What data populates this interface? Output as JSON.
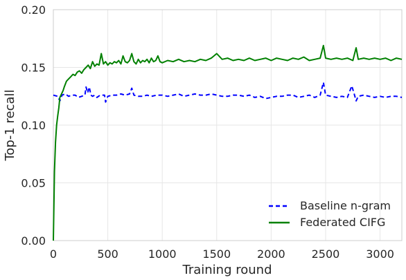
{
  "chart_data": {
    "type": "line",
    "xlabel": "Training round",
    "ylabel": "Top-1 recall",
    "xlim": [
      0,
      3200
    ],
    "ylim": [
      0,
      0.2
    ],
    "x_ticks": [
      "0",
      "500",
      "1000",
      "1500",
      "2000",
      "2500",
      "3000"
    ],
    "y_ticks": [
      "0.00",
      "0.05",
      "0.10",
      "0.15",
      "0.20"
    ],
    "grid": true,
    "legend_position": "bottom-right",
    "series": [
      {
        "name": "Baseline n-gram",
        "color": "#0000ff",
        "style": "dashed",
        "points": [
          [
            0,
            0.126
          ],
          [
            40,
            0.125
          ],
          [
            60,
            0.121
          ],
          [
            80,
            0.126
          ],
          [
            110,
            0.127
          ],
          [
            140,
            0.125
          ],
          [
            170,
            0.126
          ],
          [
            200,
            0.126
          ],
          [
            230,
            0.124
          ],
          [
            260,
            0.125
          ],
          [
            290,
            0.126
          ],
          [
            300,
            0.133
          ],
          [
            315,
            0.128
          ],
          [
            330,
            0.133
          ],
          [
            345,
            0.126
          ],
          [
            360,
            0.125
          ],
          [
            380,
            0.126
          ],
          [
            400,
            0.124
          ],
          [
            430,
            0.126
          ],
          [
            470,
            0.126
          ],
          [
            480,
            0.12
          ],
          [
            500,
            0.125
          ],
          [
            540,
            0.126
          ],
          [
            580,
            0.126
          ],
          [
            620,
            0.127
          ],
          [
            660,
            0.126
          ],
          [
            700,
            0.127
          ],
          [
            720,
            0.132
          ],
          [
            740,
            0.126
          ],
          [
            780,
            0.125
          ],
          [
            820,
            0.125
          ],
          [
            860,
            0.126
          ],
          [
            900,
            0.125
          ],
          [
            950,
            0.126
          ],
          [
            1000,
            0.126
          ],
          [
            1050,
            0.125
          ],
          [
            1100,
            0.126
          ],
          [
            1150,
            0.127
          ],
          [
            1200,
            0.125
          ],
          [
            1250,
            0.126
          ],
          [
            1300,
            0.127
          ],
          [
            1350,
            0.126
          ],
          [
            1400,
            0.126
          ],
          [
            1450,
            0.127
          ],
          [
            1500,
            0.126
          ],
          [
            1550,
            0.125
          ],
          [
            1600,
            0.125
          ],
          [
            1650,
            0.126
          ],
          [
            1700,
            0.126
          ],
          [
            1750,
            0.125
          ],
          [
            1800,
            0.126
          ],
          [
            1850,
            0.124
          ],
          [
            1900,
            0.125
          ],
          [
            1950,
            0.123
          ],
          [
            2000,
            0.124
          ],
          [
            2050,
            0.125
          ],
          [
            2100,
            0.125
          ],
          [
            2150,
            0.126
          ],
          [
            2200,
            0.126
          ],
          [
            2250,
            0.124
          ],
          [
            2300,
            0.125
          ],
          [
            2350,
            0.126
          ],
          [
            2400,
            0.124
          ],
          [
            2450,
            0.126
          ],
          [
            2480,
            0.137
          ],
          [
            2500,
            0.126
          ],
          [
            2550,
            0.125
          ],
          [
            2600,
            0.124
          ],
          [
            2650,
            0.125
          ],
          [
            2700,
            0.124
          ],
          [
            2740,
            0.134
          ],
          [
            2760,
            0.128
          ],
          [
            2780,
            0.121
          ],
          [
            2800,
            0.125
          ],
          [
            2850,
            0.126
          ],
          [
            2900,
            0.125
          ],
          [
            2950,
            0.124
          ],
          [
            3000,
            0.125
          ],
          [
            3050,
            0.124
          ],
          [
            3100,
            0.125
          ],
          [
            3150,
            0.125
          ],
          [
            3200,
            0.124
          ]
        ]
      },
      {
        "name": "Federated CIFG",
        "color": "#008000",
        "style": "solid",
        "points": [
          [
            0,
            0.0
          ],
          [
            10,
            0.06
          ],
          [
            20,
            0.085
          ],
          [
            30,
            0.1
          ],
          [
            40,
            0.108
          ],
          [
            50,
            0.115
          ],
          [
            60,
            0.124
          ],
          [
            70,
            0.126
          ],
          [
            80,
            0.128
          ],
          [
            90,
            0.13
          ],
          [
            100,
            0.133
          ],
          [
            120,
            0.138
          ],
          [
            140,
            0.14
          ],
          [
            160,
            0.142
          ],
          [
            180,
            0.144
          ],
          [
            200,
            0.143
          ],
          [
            220,
            0.146
          ],
          [
            240,
            0.147
          ],
          [
            260,
            0.145
          ],
          [
            280,
            0.148
          ],
          [
            300,
            0.15
          ],
          [
            320,
            0.152
          ],
          [
            340,
            0.149
          ],
          [
            360,
            0.155
          ],
          [
            380,
            0.151
          ],
          [
            400,
            0.153
          ],
          [
            420,
            0.152
          ],
          [
            440,
            0.162
          ],
          [
            460,
            0.153
          ],
          [
            480,
            0.155
          ],
          [
            500,
            0.152
          ],
          [
            520,
            0.154
          ],
          [
            540,
            0.153
          ],
          [
            560,
            0.155
          ],
          [
            580,
            0.154
          ],
          [
            600,
            0.156
          ],
          [
            620,
            0.153
          ],
          [
            640,
            0.16
          ],
          [
            660,
            0.155
          ],
          [
            680,
            0.154
          ],
          [
            700,
            0.156
          ],
          [
            720,
            0.162
          ],
          [
            740,
            0.155
          ],
          [
            760,
            0.153
          ],
          [
            780,
            0.157
          ],
          [
            800,
            0.154
          ],
          [
            820,
            0.156
          ],
          [
            840,
            0.155
          ],
          [
            860,
            0.157
          ],
          [
            880,
            0.154
          ],
          [
            900,
            0.158
          ],
          [
            920,
            0.155
          ],
          [
            940,
            0.156
          ],
          [
            960,
            0.16
          ],
          [
            980,
            0.155
          ],
          [
            1000,
            0.154
          ],
          [
            1050,
            0.156
          ],
          [
            1100,
            0.155
          ],
          [
            1150,
            0.157
          ],
          [
            1200,
            0.155
          ],
          [
            1250,
            0.156
          ],
          [
            1300,
            0.155
          ],
          [
            1350,
            0.157
          ],
          [
            1400,
            0.156
          ],
          [
            1450,
            0.158
          ],
          [
            1500,
            0.162
          ],
          [
            1550,
            0.157
          ],
          [
            1600,
            0.158
          ],
          [
            1650,
            0.156
          ],
          [
            1700,
            0.157
          ],
          [
            1750,
            0.156
          ],
          [
            1800,
            0.158
          ],
          [
            1850,
            0.156
          ],
          [
            1900,
            0.157
          ],
          [
            1950,
            0.158
          ],
          [
            2000,
            0.156
          ],
          [
            2050,
            0.158
          ],
          [
            2100,
            0.157
          ],
          [
            2150,
            0.156
          ],
          [
            2200,
            0.158
          ],
          [
            2250,
            0.157
          ],
          [
            2300,
            0.159
          ],
          [
            2350,
            0.156
          ],
          [
            2400,
            0.157
          ],
          [
            2450,
            0.158
          ],
          [
            2480,
            0.169
          ],
          [
            2500,
            0.158
          ],
          [
            2550,
            0.157
          ],
          [
            2600,
            0.158
          ],
          [
            2650,
            0.157
          ],
          [
            2700,
            0.158
          ],
          [
            2750,
            0.156
          ],
          [
            2780,
            0.167
          ],
          [
            2800,
            0.157
          ],
          [
            2850,
            0.158
          ],
          [
            2900,
            0.157
          ],
          [
            2950,
            0.158
          ],
          [
            3000,
            0.157
          ],
          [
            3050,
            0.158
          ],
          [
            3100,
            0.156
          ],
          [
            3150,
            0.158
          ],
          [
            3200,
            0.157
          ]
        ]
      }
    ]
  }
}
